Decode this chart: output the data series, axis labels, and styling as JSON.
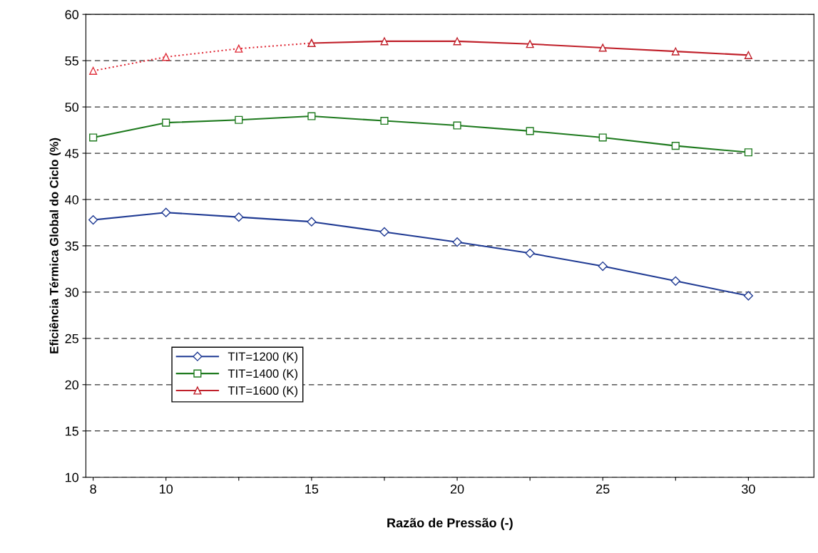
{
  "chart_data": {
    "type": "line",
    "xlabel": "Razão de Pressão (-)",
    "ylabel": "Eficiência Térmica Global do Ciclo (%)",
    "categories": [
      "8",
      "10",
      null,
      "15",
      null,
      "20",
      null,
      "25",
      null,
      "30"
    ],
    "ylim": [
      10,
      60
    ],
    "yticks": [
      10,
      15,
      20,
      25,
      30,
      35,
      40,
      45,
      50,
      55,
      60
    ],
    "grid": "y",
    "legend": "bottom left",
    "series": [
      {
        "name": "TIT=1200 (K)",
        "color": "#1f3a93",
        "marker": "diamond",
        "line_style": "solid",
        "values": [
          37.8,
          38.6,
          38.1,
          37.6,
          36.5,
          35.4,
          34.2,
          32.8,
          31.2,
          29.6
        ]
      },
      {
        "name": "TIT=1400 (K)",
        "color": "#1e7a1e",
        "marker": "square",
        "line_style": "solid",
        "values": [
          46.7,
          48.3,
          48.6,
          49.0,
          48.5,
          48.0,
          47.4,
          46.7,
          45.8,
          45.1
        ]
      },
      {
        "color": "#e0303c",
        "marker": "triangle",
        "line_style": "dotted",
        "values": [
          53.9,
          55.4,
          56.3,
          56.9,
          null,
          null,
          null,
          null,
          null,
          null
        ]
      },
      {
        "name": "TIT=1600 (K)",
        "color": "#c0202a",
        "marker": "triangle",
        "line_style": "solid",
        "values": [
          null,
          null,
          null,
          56.9,
          57.1,
          57.1,
          56.8,
          56.4,
          56.0,
          55.6
        ]
      }
    ]
  }
}
